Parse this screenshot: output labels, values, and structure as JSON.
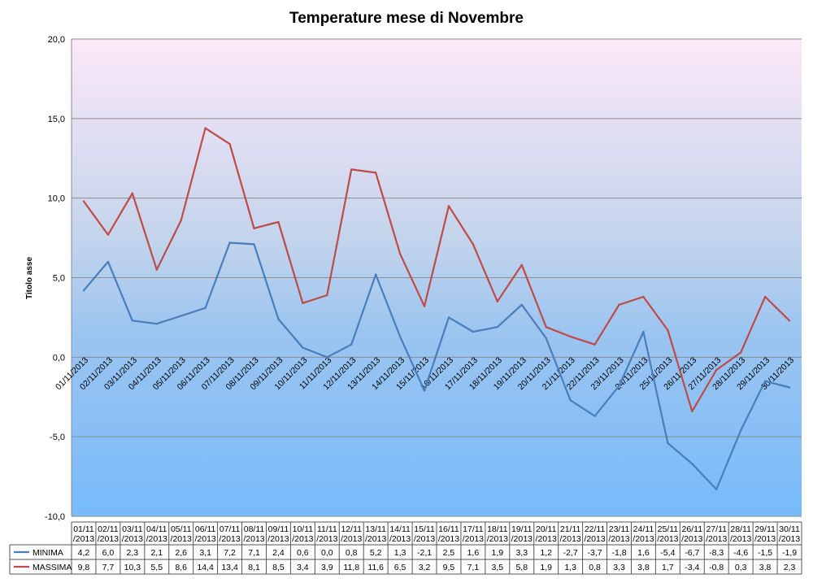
{
  "chart_data": {
    "type": "line",
    "title": "Temperature mese di Novembre",
    "xlabel": "",
    "ylabel": "Titolo asse",
    "ylim": [
      -10,
      20
    ],
    "yticks": [
      "-10,0",
      "-5,0",
      "0,0",
      "5,0",
      "10,0",
      "15,0",
      "20,0"
    ],
    "ytick_values": [
      -10,
      -5,
      0,
      5,
      10,
      15,
      20
    ],
    "grid": true,
    "legend": "bottom-left data table",
    "categories": [
      "01/11/2013",
      "02/11/2013",
      "03/11/2013",
      "04/11/2013",
      "05/11/2013",
      "06/11/2013",
      "07/11/2013",
      "08/11/2013",
      "09/11/2013",
      "10/11/2013",
      "11/11/2013",
      "12/11/2013",
      "13/11/2013",
      "14/11/2013",
      "15/11/2013",
      "16/11/2013",
      "17/11/2013",
      "18/11/2013",
      "19/11/2013",
      "20/11/2013",
      "21/11/2013",
      "22/11/2013",
      "23/11/2013",
      "24/11/2013",
      "25/11/2013",
      "26/11/2013",
      "27/11/2013",
      "28/11/2013",
      "29/11/2013",
      "30/11/2013"
    ],
    "table_header_line1": [
      "01/11",
      "02/11",
      "03/11",
      "04/11",
      "05/11",
      "06/11",
      "07/11",
      "08/11",
      "09/11",
      "10/11",
      "11/11",
      "12/11",
      "13/11",
      "14/11",
      "15/11",
      "16/11",
      "17/11",
      "18/11",
      "19/11",
      "20/11",
      "21/11",
      "22/11",
      "23/11",
      "24/11",
      "25/11",
      "26/11",
      "27/11",
      "28/11",
      "29/11",
      "30/11"
    ],
    "table_header_line2": "/2013",
    "series": [
      {
        "name": "MINIMA",
        "color": "#4a7ebb",
        "values": [
          4.2,
          6.0,
          2.3,
          2.1,
          2.6,
          3.1,
          7.2,
          7.1,
          2.4,
          0.6,
          0.0,
          0.8,
          5.2,
          1.3,
          -2.1,
          2.5,
          1.6,
          1.9,
          3.3,
          1.2,
          -2.7,
          -3.7,
          -1.8,
          1.6,
          -5.4,
          -6.7,
          -8.3,
          -4.6,
          -1.5,
          -1.9
        ],
        "labels": [
          "4,2",
          "6,0",
          "2,3",
          "2,1",
          "2,6",
          "3,1",
          "7,2",
          "7,1",
          "2,4",
          "0,6",
          "0,0",
          "0,8",
          "5,2",
          "1,3",
          "-2,1",
          "2,5",
          "1,6",
          "1,9",
          "3,3",
          "1,2",
          "-2,7",
          "-3,7",
          "-1,8",
          "1,6",
          "-5,4",
          "-6,7",
          "-8,3",
          "-4,6",
          "-1,5",
          "-1,9"
        ]
      },
      {
        "name": "MASSIMA",
        "color": "#be4b48",
        "values": [
          9.8,
          7.7,
          10.3,
          5.5,
          8.6,
          14.4,
          13.4,
          8.1,
          8.5,
          3.4,
          3.9,
          11.8,
          11.6,
          6.5,
          3.2,
          9.5,
          7.1,
          3.5,
          5.8,
          1.9,
          1.3,
          0.8,
          3.3,
          3.8,
          1.7,
          -3.4,
          -0.8,
          0.3,
          3.8,
          2.3
        ],
        "labels": [
          "9,8",
          "7,7",
          "10,3",
          "5,5",
          "8,6",
          "14,4",
          "13,4",
          "8,1",
          "8,5",
          "3,4",
          "3,9",
          "11,8",
          "11,6",
          "6,5",
          "3,2",
          "9,5",
          "7,1",
          "3,5",
          "5,8",
          "1,9",
          "1,3",
          "0,8",
          "3,3",
          "3,8",
          "1,7",
          "-3,4",
          "-0,8",
          "0,3",
          "3,8",
          "2,3"
        ]
      }
    ]
  }
}
